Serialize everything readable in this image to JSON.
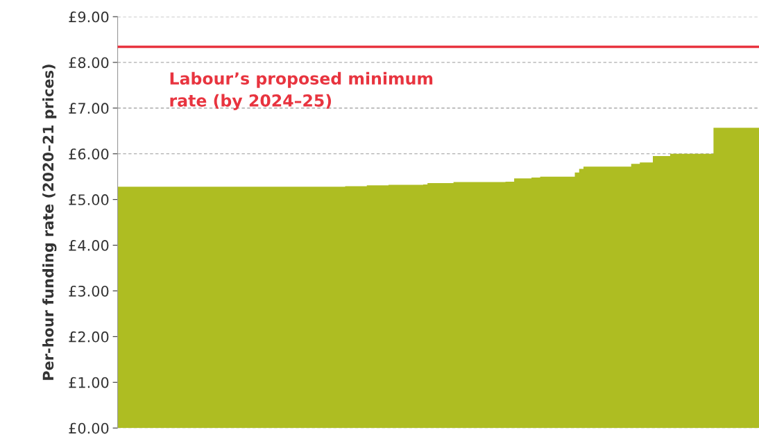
{
  "chart_data": {
    "type": "area",
    "ylabel": "Per-hour funding rate (2020–21 prices)",
    "categories": [
      null,
      null,
      null,
      null,
      null,
      null,
      null,
      null,
      null,
      null,
      null,
      null,
      null,
      null,
      null,
      null,
      null,
      null,
      null,
      null,
      null,
      null,
      null,
      null,
      null,
      null,
      null,
      null,
      null,
      null,
      null,
      null,
      null,
      null,
      null,
      null,
      null,
      null,
      null,
      null,
      null,
      null,
      null,
      null,
      null,
      null,
      null,
      null,
      null,
      null,
      null,
      null,
      null,
      null,
      null,
      null,
      null,
      null,
      null,
      null,
      null,
      null,
      null,
      null,
      null,
      null,
      null,
      null,
      null,
      null,
      null,
      null,
      null,
      null,
      null,
      null,
      null,
      null,
      null,
      null,
      null,
      null,
      null,
      null,
      null,
      null,
      null,
      null,
      null,
      null,
      null,
      null,
      null,
      null,
      null,
      null,
      null,
      null,
      null,
      null,
      null,
      null,
      null,
      null,
      null,
      null,
      null,
      null,
      null,
      null,
      null,
      null,
      null,
      null,
      null,
      null,
      null,
      null,
      null,
      null,
      null,
      null,
      null,
      null,
      null,
      null,
      null,
      null,
      null,
      null,
      null,
      null,
      null,
      null,
      null,
      null,
      null,
      null,
      null,
      null,
      null,
      null,
      null,
      null,
      null,
      null,
      null,
      null,
      null
    ],
    "values": [
      5.28,
      5.28,
      5.28,
      5.28,
      5.28,
      5.28,
      5.28,
      5.28,
      5.28,
      5.28,
      5.28,
      5.28,
      5.28,
      5.28,
      5.28,
      5.28,
      5.28,
      5.28,
      5.28,
      5.28,
      5.28,
      5.28,
      5.28,
      5.28,
      5.28,
      5.28,
      5.28,
      5.28,
      5.28,
      5.28,
      5.28,
      5.28,
      5.28,
      5.28,
      5.28,
      5.28,
      5.28,
      5.28,
      5.28,
      5.28,
      5.28,
      5.28,
      5.28,
      5.28,
      5.28,
      5.28,
      5.28,
      5.28,
      5.28,
      5.28,
      5.28,
      5.28,
      5.28,
      5.29,
      5.29,
      5.29,
      5.29,
      5.29,
      5.31,
      5.31,
      5.31,
      5.31,
      5.31,
      5.32,
      5.32,
      5.32,
      5.32,
      5.32,
      5.32,
      5.32,
      5.32,
      5.33,
      5.36,
      5.36,
      5.36,
      5.36,
      5.36,
      5.36,
      5.38,
      5.38,
      5.38,
      5.38,
      5.38,
      5.38,
      5.38,
      5.38,
      5.38,
      5.38,
      5.38,
      5.38,
      5.39,
      5.39,
      5.46,
      5.46,
      5.46,
      5.46,
      5.48,
      5.48,
      5.5,
      5.5,
      5.5,
      5.5,
      5.5,
      5.5,
      5.5,
      5.5,
      5.59,
      5.67,
      5.72,
      5.72,
      5.72,
      5.72,
      5.72,
      5.72,
      5.72,
      5.72,
      5.72,
      5.72,
      5.72,
      5.78,
      5.78,
      5.81,
      5.81,
      5.81,
      5.95,
      5.95,
      5.95,
      5.95,
      6.0,
      6.0,
      6.0,
      6.0,
      6.0,
      6.0,
      6.0,
      6.0,
      6.0,
      6.0,
      6.57,
      6.57,
      6.57,
      6.57,
      6.57,
      6.57,
      6.57,
      6.57,
      6.57,
      6.57,
      6.57
    ],
    "color": "#aebd22",
    "ylim": [
      0,
      9
    ],
    "yticks": [
      {
        "value": 0,
        "label": "£0.00"
      },
      {
        "value": 1,
        "label": "£1.00"
      },
      {
        "value": 2,
        "label": "£2.00"
      },
      {
        "value": 3,
        "label": "£3.00"
      },
      {
        "value": 4,
        "label": "£4.00"
      },
      {
        "value": 5,
        "label": "£5.00"
      },
      {
        "value": 6,
        "label": "£6.00"
      },
      {
        "value": 7,
        "label": "£7.00"
      },
      {
        "value": 8,
        "label": "£8.00"
      },
      {
        "value": 9,
        "label": "£9.00"
      }
    ],
    "grid": "y",
    "ref_lines": [
      {
        "axis": "y",
        "value": 8.34,
        "label": "Labour’s proposed minimum\nrate (by 2024–25)",
        "color": "#e8343f"
      }
    ]
  }
}
